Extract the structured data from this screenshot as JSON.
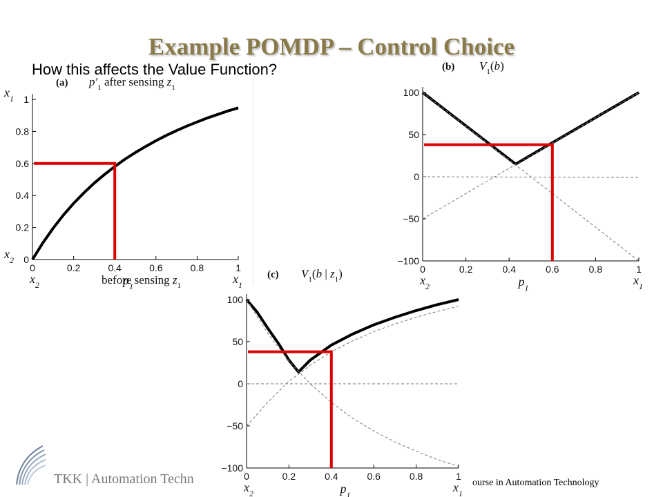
{
  "slide": {
    "title": "Example POMDP – Control Choice",
    "subtitle": "How this affects the Value Function?",
    "footer_left": "TKK | Automation Techn",
    "footer_right": "ourse in Automation Technology"
  },
  "chart_data": [
    {
      "id": "a",
      "type": "line",
      "panel_label": "(a)",
      "title": "p′1 after sensing z1",
      "xlabel": "p1 before sensing z1",
      "x_end_labels": [
        "x2",
        "x1"
      ],
      "y_end_labels": [
        "x2",
        "x1"
      ],
      "xlim": [
        0,
        1
      ],
      "ylim": [
        0,
        1
      ],
      "x_ticks": [
        "0",
        "0.2",
        "0.4",
        "0.6",
        "0.8",
        "1"
      ],
      "y_ticks": [
        "0",
        "0.2",
        "0.4",
        "0.6",
        "0.8",
        "1"
      ],
      "grid": false,
      "series": [
        {
          "style": "solid",
          "x": [
            0,
            0.05,
            0.1,
            0.15,
            0.2,
            0.25,
            0.3,
            0.35,
            0.4,
            0.45,
            0.5,
            0.55,
            0.6,
            0.65,
            0.7,
            0.75,
            0.8,
            0.85,
            0.9,
            0.95,
            1.0
          ],
          "y": [
            0,
            0.103,
            0.195,
            0.277,
            0.351,
            0.417,
            0.477,
            0.531,
            0.581,
            0.627,
            0.668,
            0.706,
            0.742,
            0.775,
            0.805,
            0.833,
            0.859,
            0.884,
            0.906,
            0.928,
            0.947
          ]
        }
      ],
      "highlight": {
        "color": "#dd0000",
        "x": 0.4,
        "y": 0.6
      }
    },
    {
      "id": "b",
      "type": "line",
      "panel_label": "(b)",
      "title": "V1(b)",
      "xlabel": "p1",
      "x_end_labels": [
        "x2",
        "x1"
      ],
      "xlim": [
        0,
        1
      ],
      "ylim": [
        -100,
        100
      ],
      "x_ticks": [
        "0",
        "0.2",
        "0.4",
        "0.6",
        "0.8",
        "1"
      ],
      "y_ticks": [
        "−100",
        "−50",
        "0",
        "50",
        "100"
      ],
      "grid": false,
      "series": [
        {
          "style": "solid",
          "x": [
            0,
            0.43,
            1
          ],
          "y": [
            100,
            15,
            100
          ]
        },
        {
          "style": "dashed",
          "x": [
            0,
            1
          ],
          "y": [
            -50,
            100
          ]
        },
        {
          "style": "dashed",
          "x": [
            0,
            1
          ],
          "y": [
            100,
            -100
          ]
        },
        {
          "style": "dashed",
          "x": [
            0,
            1
          ],
          "y": [
            0,
            -1
          ]
        }
      ],
      "highlight": {
        "color": "#dd0000",
        "x": 0.6,
        "y": 38
      }
    },
    {
      "id": "c",
      "type": "line",
      "panel_label": "(c)",
      "title": "V1(b | z1)",
      "xlabel": "p1",
      "x_end_labels": [
        "x2",
        "x1"
      ],
      "xlim": [
        0,
        1
      ],
      "ylim": [
        -100,
        100
      ],
      "x_ticks": [
        "0",
        "0.2",
        "0.4",
        "0.6",
        "0.8",
        "1"
      ],
      "y_ticks": [
        "−100",
        "−50",
        "0",
        "50",
        "100"
      ],
      "grid": false,
      "series": [
        {
          "style": "solid",
          "x": [
            0,
            0.05,
            0.1,
            0.15,
            0.2,
            0.245,
            0.3,
            0.4,
            0.5,
            0.6,
            0.7,
            0.8,
            0.9,
            1.0
          ],
          "y": [
            100,
            85,
            66,
            48,
            28,
            14,
            28,
            46,
            59,
            70,
            79,
            87,
            94,
            100
          ]
        },
        {
          "style": "dashed",
          "x": [
            0,
            0.1,
            0.2,
            0.3,
            0.4,
            0.5,
            0.6,
            0.7,
            0.8,
            0.9,
            1.0
          ],
          "y": [
            -50,
            -22,
            3,
            22,
            38,
            51,
            62,
            71,
            79,
            86,
            92
          ]
        },
        {
          "style": "dashed",
          "x": [
            0,
            0.1,
            0.2,
            0.3,
            0.4,
            0.5,
            0.6,
            0.7,
            0.8,
            0.9,
            1.0
          ],
          "y": [
            100,
            60,
            27,
            0,
            -22,
            -41,
            -56,
            -69,
            -80,
            -90,
            -98
          ]
        },
        {
          "style": "dashed",
          "x": [
            0,
            1
          ],
          "y": [
            0,
            0
          ]
        }
      ],
      "highlight": {
        "color": "#dd0000",
        "x": 0.4,
        "y": 38
      }
    }
  ]
}
